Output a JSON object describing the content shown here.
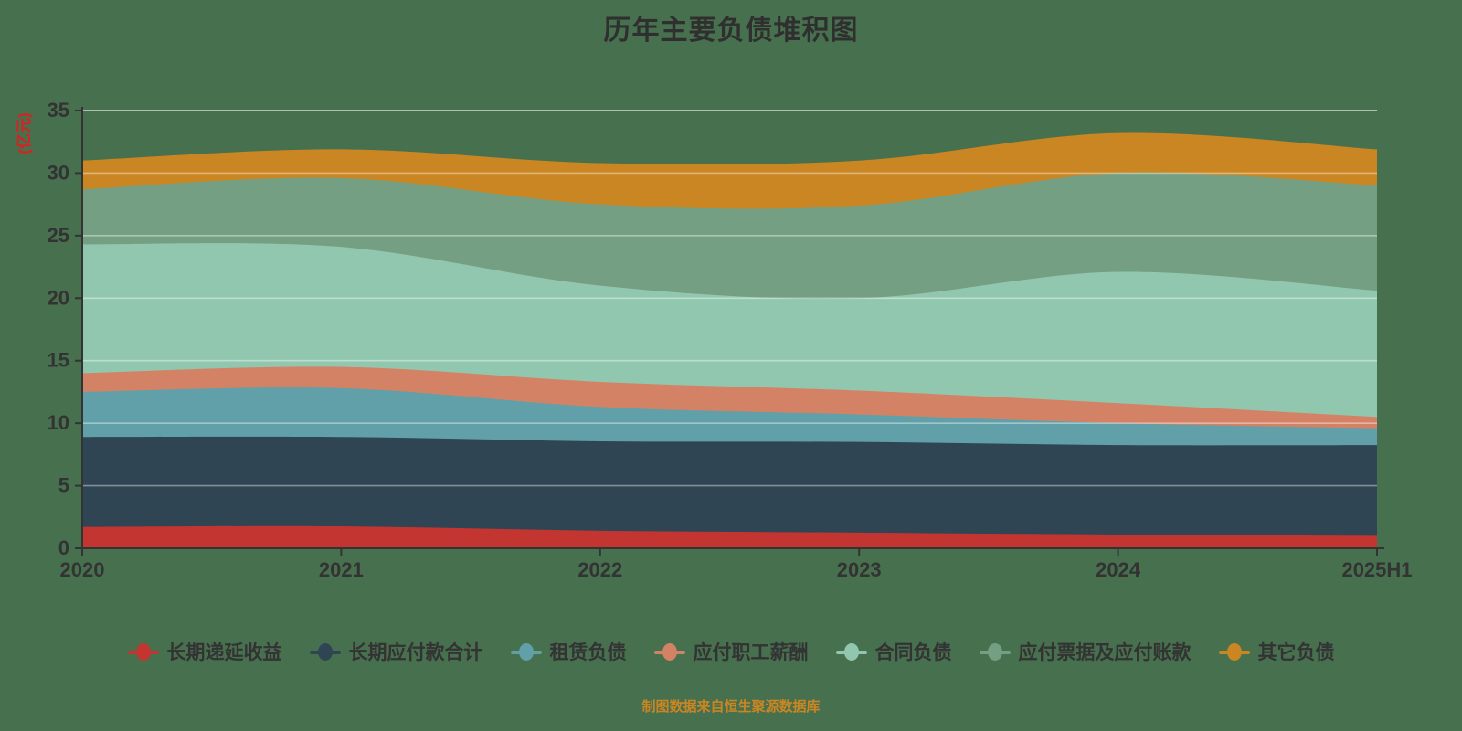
{
  "page": {
    "background_color": "#47704f",
    "title": "历年主要负债堆积图",
    "title_color": "#2f2f2f",
    "caption": "制图数据来自恒生聚源数据库",
    "caption_color": "#ca8622"
  },
  "chart_data": {
    "type": "area",
    "stacked": true,
    "smooth": true,
    "title": "历年主要负债堆积图",
    "categories": [
      "2020",
      "2021",
      "2022",
      "2023",
      "2024",
      "2025H1"
    ],
    "series": [
      {
        "name": "长期递延收益",
        "color": "#c23531",
        "values": [
          1.7,
          1.75,
          1.4,
          1.25,
          1.1,
          1.0
        ]
      },
      {
        "name": "长期应付款合计",
        "color": "#2f4554",
        "values": [
          7.2,
          7.15,
          7.15,
          7.25,
          7.15,
          7.25
        ]
      },
      {
        "name": "租赁负债",
        "color": "#61a0a8",
        "values": [
          3.6,
          3.9,
          2.75,
          2.2,
          1.75,
          1.35
        ]
      },
      {
        "name": "应付职工薪酬",
        "color": "#d48265",
        "values": [
          1.5,
          1.7,
          2.0,
          1.9,
          1.6,
          0.9
        ]
      },
      {
        "name": "合同负债",
        "color": "#91c7ae",
        "values": [
          10.3,
          9.6,
          7.7,
          7.4,
          10.5,
          10.1
        ]
      },
      {
        "name": "应付票据及应付账款",
        "color": "#749f83",
        "values": [
          4.4,
          5.5,
          6.5,
          7.4,
          7.9,
          8.4
        ]
      },
      {
        "name": "其它负债",
        "color": "#ca8622",
        "values": [
          2.3,
          2.3,
          3.3,
          3.6,
          3.2,
          2.9
        ]
      }
    ],
    "totals": [
      31.0,
      31.9,
      30.8,
      31.0,
      33.2,
      31.9
    ],
    "xlabel": "",
    "ylabel": "(亿元)",
    "ylabel_color": "#d92121",
    "ylim": [
      0,
      35
    ],
    "yticks": [
      0,
      5,
      10,
      15,
      20,
      25,
      30,
      35
    ],
    "grid": true,
    "gridline_color": "rgba(255,255,255,0.4)",
    "top_gridline_color": "rgba(255,255,255,0.75)",
    "axis_color": "#333333",
    "tick_label_color": "#333333",
    "legend_position": "bottom"
  }
}
